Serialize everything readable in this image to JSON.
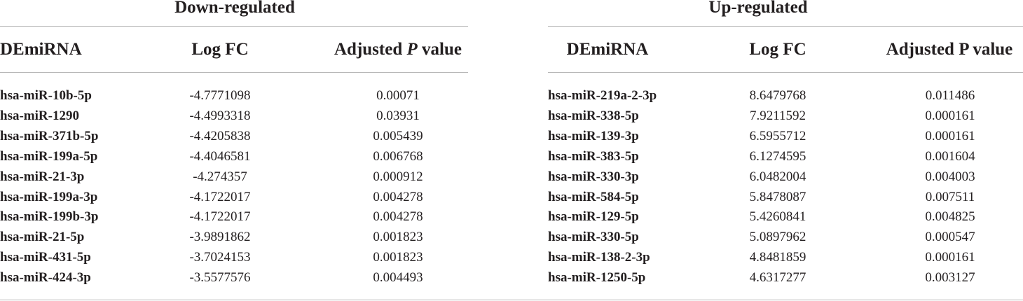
{
  "down": {
    "title": "Down-regulated",
    "headers": {
      "mirna": "DEmiRNA",
      "logfc": "Log FC",
      "adjp_prefix": "Adjusted ",
      "adjp_italic": "P",
      "adjp_suffix": " value"
    },
    "rows": [
      {
        "name": "hsa-miR-10b-5p",
        "logfc": "-4.7771098",
        "p": "0.00071"
      },
      {
        "name": "hsa-miR-1290",
        "logfc": "-4.4993318",
        "p": "0.03931"
      },
      {
        "name": "hsa-miR-371b-5p",
        "logfc": "-4.4205838",
        "p": "0.005439"
      },
      {
        "name": "hsa-miR-199a-5p",
        "logfc": "-4.4046581",
        "p": "0.006768"
      },
      {
        "name": "hsa-miR-21-3p",
        "logfc": "-4.274357",
        "p": "0.000912"
      },
      {
        "name": "hsa-miR-199a-3p",
        "logfc": "-4.1722017",
        "p": "0.004278"
      },
      {
        "name": "hsa-miR-199b-3p",
        "logfc": "-4.1722017",
        "p": "0.004278"
      },
      {
        "name": "hsa-miR-21-5p",
        "logfc": "-3.9891862",
        "p": "0.001823"
      },
      {
        "name": "hsa-miR-431-5p",
        "logfc": "-3.7024153",
        "p": "0.001823"
      },
      {
        "name": "hsa-miR-424-3p",
        "logfc": "-3.5577576",
        "p": "0.004493"
      }
    ]
  },
  "up": {
    "title": "Up-regulated",
    "headers": {
      "mirna": "DEmiRNA",
      "logfc": "Log FC",
      "adjp": "Adjusted P value"
    },
    "rows": [
      {
        "name": "hsa-miR-219a-2-3p",
        "logfc": "8.6479768",
        "p": "0.011486"
      },
      {
        "name": "hsa-miR-338-5p",
        "logfc": "7.9211592",
        "p": "0.000161"
      },
      {
        "name": "hsa-miR-139-3p",
        "logfc": "6.5955712",
        "p": "0.000161"
      },
      {
        "name": "hsa-miR-383-5p",
        "logfc": "6.1274595",
        "p": "0.001604"
      },
      {
        "name": "hsa-miR-330-3p",
        "logfc": "6.0482004",
        "p": "0.004003"
      },
      {
        "name": "hsa-miR-584-5p",
        "logfc": "5.8478087",
        "p": "0.007511"
      },
      {
        "name": "hsa-miR-129-5p",
        "logfc": "5.4260841",
        "p": "0.004825"
      },
      {
        "name": "hsa-miR-330-5p",
        "logfc": "5.0897962",
        "p": "0.000547"
      },
      {
        "name": "hsa-miR-138-2-3p",
        "logfc": "4.8481859",
        "p": "0.000161"
      },
      {
        "name": "hsa-miR-1250-5p",
        "logfc": "4.6317277",
        "p": "0.003127"
      }
    ]
  }
}
